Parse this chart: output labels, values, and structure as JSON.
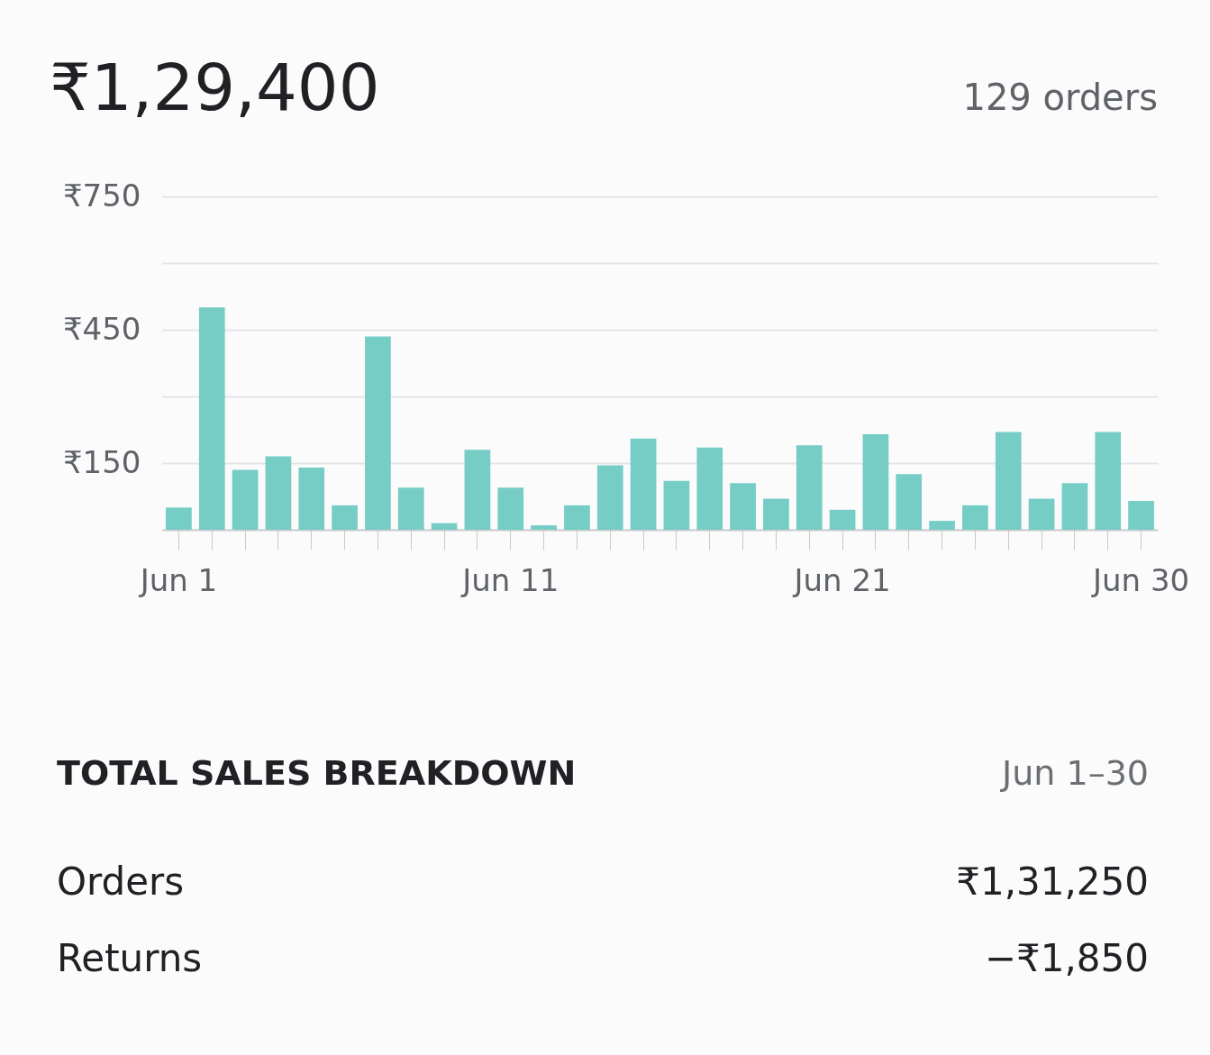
{
  "chart_data": {
    "type": "bar",
    "title": "₹1,29,400",
    "subtitle": "129 orders",
    "categories": [
      "Jun 1",
      null,
      null,
      null,
      null,
      null,
      null,
      null,
      null,
      null,
      "Jun 11",
      null,
      null,
      null,
      null,
      null,
      null,
      null,
      null,
      null,
      "Jun 21",
      null,
      null,
      null,
      null,
      null,
      null,
      null,
      null,
      "Jun 30"
    ],
    "values": [
      50,
      500,
      135,
      165,
      140,
      55,
      435,
      95,
      15,
      180,
      95,
      10,
      55,
      145,
      205,
      110,
      185,
      105,
      70,
      190,
      45,
      215,
      125,
      20,
      55,
      220,
      70,
      105,
      220,
      65
    ],
    "color": "#76cdc6",
    "ylim": [
      0,
      750
    ],
    "yticks": [
      {
        "value": 150,
        "label": "₹150"
      },
      {
        "value": 300,
        "label": null
      },
      {
        "value": 450,
        "label": "₹450"
      },
      {
        "value": 600,
        "label": null
      },
      {
        "value": 750,
        "label": "₹750"
      }
    ],
    "grid": "y",
    "annotations": [
      "TOTAL SALES BREAKDOWN",
      "Jun 1–30",
      "Orders",
      "₹1,31,250",
      "Returns",
      "−₹1,850"
    ]
  }
}
